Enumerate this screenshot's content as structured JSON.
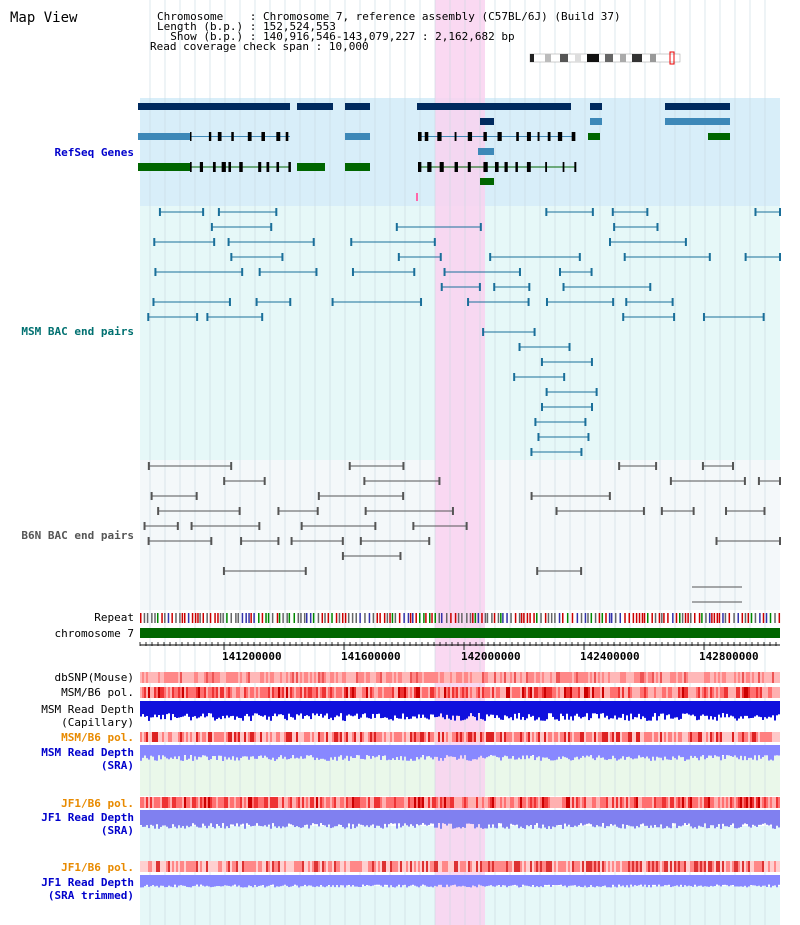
{
  "header": {
    "title": "Map View",
    "info": [
      {
        "key": "Chromosome    ",
        "value": "Chromosome 7, reference assembly (C57BL/6J) (Build 37)"
      },
      {
        "key": "Length (b.p.) ",
        "value": "152,524,553"
      },
      {
        "key": "  Show (b.p.) ",
        "value": "140,916,546-143,079,227 : 2,162,682 bp"
      },
      {
        "key": "Read coverage check span",
        "value": "10,000"
      }
    ]
  },
  "tracks": {
    "refseq": "RefSeq Genes",
    "msm_bac": "MSM BAC end pairs",
    "b6n_bac": "B6N BAC end pairs",
    "repeat": "Repeat",
    "chromosome": "chromosome 7",
    "dbsnp": "dbSNP(Mouse)",
    "msm_b6_pol": "MSM/B6 pol.",
    "msm_depth_cap_1": "MSM Read Depth",
    "msm_depth_cap_2": "(Capillary)",
    "msm_b6_pol_2": "MSM/B6 pol.",
    "msm_depth_sra_1": "MSM Read Depth",
    "msm_depth_sra_2": "(SRA)",
    "jf1_b6_pol": "JF1/B6 pol.",
    "jf1_depth_sra_1": "JF1 Read Depth",
    "jf1_depth_sra_2": "(SRA)",
    "jf1_b6_pol_2": "JF1/B6 pol.",
    "jf1_depth_trim_1": "JF1 Read Depth",
    "jf1_depth_trim_2": "(SRA trimmed)"
  },
  "axis": {
    "ticks": [
      "141200000",
      "141600000",
      "142000000",
      "142400000",
      "142800000"
    ]
  },
  "colors": {
    "highlight": "#f9d2f0",
    "refseq_bg": "#d8eef9",
    "msm_bg": "#e6f8f8",
    "b6n_bg": "#f4f8fa",
    "label_blue": "#0000cc",
    "label_teal": "#007070",
    "label_gray": "#555555",
    "label_orange": "#e88a00",
    "gene_dark": "#002a5e",
    "gene_mid": "#3d88b8",
    "gene_green": "#006600",
    "chrom_green": "#006600"
  }
}
